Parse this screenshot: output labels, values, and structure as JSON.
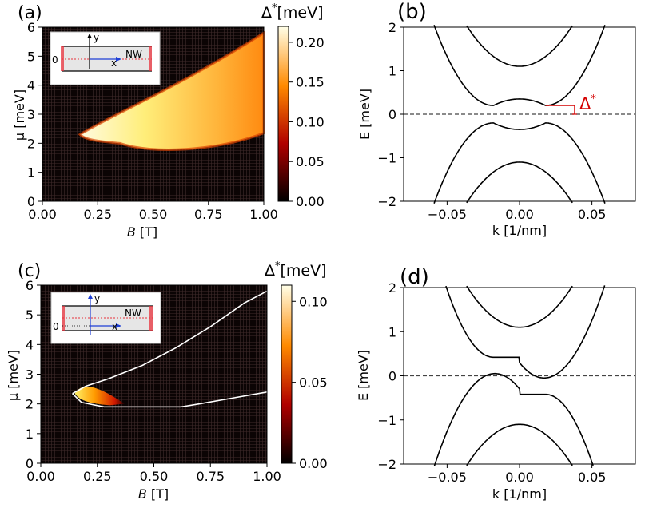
{
  "colors": {
    "line": "#000000",
    "gap_annotation": "#d40000",
    "dashed": "#444444",
    "mesh_bg": "#0b0404",
    "inset_wire": "#e6e6e6",
    "inset_contact": "#e8323c",
    "inset_axis": "#1f3fd6",
    "inset_dotted": "#e8323c",
    "contour": "#ffffff"
  },
  "chart_data": [
    {
      "panel": "(a)",
      "type": "heatmap",
      "xlabel_italic": "B",
      "xlabel_unit": "[T]",
      "ylabel": "μ [meV]",
      "xlim": [
        0,
        1
      ],
      "ylim": [
        0,
        6
      ],
      "xticks": [
        "0.00",
        "0.25",
        "0.50",
        "0.75",
        "1.00"
      ],
      "yticks": [
        "0",
        "1",
        "2",
        "3",
        "4",
        "5",
        "6"
      ],
      "colorbar": {
        "label_sym": "Δ",
        "label_star": "*",
        "label_unit": "[meV]",
        "vmin": 0,
        "vmax": 0.22,
        "ticks": [
          "0.00",
          "0.05",
          "0.10",
          "0.15",
          "0.20"
        ],
        "tick_values": [
          0,
          0.05,
          0.1,
          0.15,
          0.2
        ]
      },
      "topological_region": {
        "tip_B": 0.17,
        "tip_mu": 2.3,
        "lower_boundary_mu": 2.0,
        "upper_boundary_at_B1": 5.8,
        "lower_boundary_at_B1": 2.35,
        "max_gap": 0.22
      },
      "inset": {
        "y_label": "y",
        "x_label": "x",
        "zero_label": "0",
        "nw_label": "NW"
      }
    },
    {
      "panel": "(b)",
      "type": "line",
      "xlabel": "k [1/nm]",
      "ylabel": "E [meV]",
      "xlim": [
        -0.08,
        0.08
      ],
      "ylim": [
        -2,
        2
      ],
      "xticks": [
        "−0.05",
        "0.00",
        "0.05"
      ],
      "xtick_values": [
        -0.05,
        0,
        0.05
      ],
      "yticks": [
        "−2",
        "−1",
        "0",
        "1",
        "2"
      ],
      "ytick_values": [
        -2,
        -1,
        0,
        1,
        2
      ],
      "series": [
        {
          "name": "band 1 outer",
          "kind": "outer",
          "k0": 0.018,
          "E0": 0.2,
          "a": 1100
        },
        {
          "name": "band 2 inner",
          "kind": "inner",
          "E0": 1.1,
          "a": 700
        }
      ],
      "bands_symmetric": true,
      "annotation": {
        "symbol": "Δ",
        "star": "*",
        "k": 0.038,
        "gap": 0.2
      },
      "dashed_line_E": 0
    },
    {
      "panel": "(c)",
      "type": "heatmap",
      "xlabel_italic": "B",
      "xlabel_unit": "[T]",
      "ylabel": "μ [meV]",
      "xlim": [
        0,
        1
      ],
      "ylim": [
        0,
        6
      ],
      "xticks": [
        "0.00",
        "0.25",
        "0.50",
        "0.75",
        "1.00"
      ],
      "yticks": [
        "0",
        "1",
        "2",
        "3",
        "4",
        "5",
        "6"
      ],
      "colorbar": {
        "label_sym": "Δ",
        "label_star": "*",
        "label_unit": "[meV]",
        "vmin": 0,
        "vmax": 0.11,
        "ticks": [
          "0.00",
          "0.05",
          "0.10"
        ],
        "tick_values": [
          0,
          0.05,
          0.1
        ]
      },
      "topological_region": {
        "tip_B": 0.14,
        "tip_mu": 2.35,
        "lower_boundary_mu": 1.9,
        "upper_boundary_at_B1": 5.8,
        "lower_boundary_at_B1": 2.4,
        "max_gap": 0.11,
        "gapped_area_B_max": 0.37
      },
      "inset": {
        "y_label": "y",
        "x_label": "x",
        "zero_label": "0",
        "nw_label": "NW"
      }
    },
    {
      "panel": "(d)",
      "type": "line",
      "xlabel": "k [1/nm]",
      "ylabel": "E [meV]",
      "xlim": [
        -0.08,
        0.08
      ],
      "ylim": [
        -2,
        2
      ],
      "xticks": [
        "−0.05",
        "0.00",
        "0.05"
      ],
      "xtick_values": [
        -0.05,
        0,
        0.05
      ],
      "yticks": [
        "−2",
        "−1",
        "0",
        "1",
        "2"
      ],
      "ytick_values": [
        -2,
        -1,
        0,
        1,
        2
      ],
      "series": [
        {
          "name": "band 1 upper",
          "kind": "tilted_upper"
        },
        {
          "name": "band 1 lower",
          "kind": "tilted_lower"
        },
        {
          "name": "band 2 upper",
          "kind": "inner",
          "E0": 1.1,
          "a": 700
        },
        {
          "name": "band 2 lower",
          "kind": "inner",
          "E0": -1.1,
          "a": -700
        }
      ],
      "dashed_line_E": 0
    }
  ]
}
